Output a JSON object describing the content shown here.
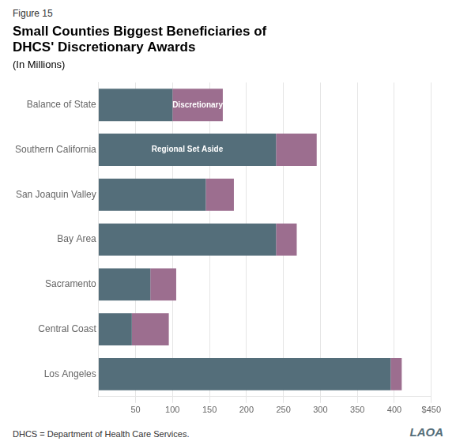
{
  "chart_data": {
    "type": "bar",
    "orientation": "horizontal",
    "stacked": true,
    "figure_label": "Figure 15",
    "title": [
      "Small Counties Biggest Beneficiaries of",
      "DHCS' Discretionary Awards"
    ],
    "subtitle": "(In Millions)",
    "categories": [
      "Los Angeles",
      "Central Coast",
      "Sacramento",
      "Bay Area",
      "San Joaquin Valley",
      "Southern California",
      "Balance of State"
    ],
    "series": [
      {
        "name": "Regional Set Aside",
        "color": "#546e7a",
        "values": [
          395,
          45,
          70,
          240,
          145,
          240,
          100
        ]
      },
      {
        "name": "Discretionary",
        "color": "#9c6e8f",
        "values": [
          15,
          50,
          35,
          28,
          38,
          55,
          68
        ]
      }
    ],
    "annotations": [
      {
        "text": "Discretionary",
        "series": "Discretionary",
        "category": "Balance of State"
      },
      {
        "text": "Regional Set Aside",
        "series": "Regional Set Aside",
        "category": "Southern California"
      }
    ],
    "xlim": [
      0,
      450
    ],
    "xticks": [
      50,
      100,
      150,
      200,
      250,
      300,
      350,
      400,
      {
        "value": 450,
        "label": "$450"
      }
    ],
    "grid": true,
    "footnote": "DHCS = Department of Health Care Services.",
    "logo": "LAOA"
  }
}
